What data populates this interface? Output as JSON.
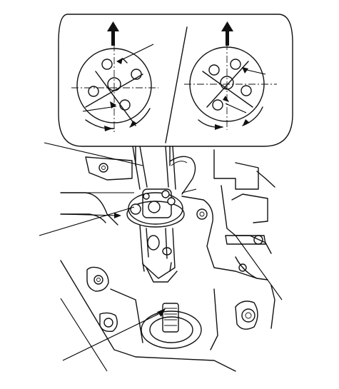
{
  "figure": {
    "panels": [
      {
        "name": "left-alignment-view",
        "direction": "up"
      },
      {
        "name": "right-alignment-view",
        "direction": "up"
      }
    ],
    "line_color": "#111111",
    "background_color": "#ffffff"
  }
}
